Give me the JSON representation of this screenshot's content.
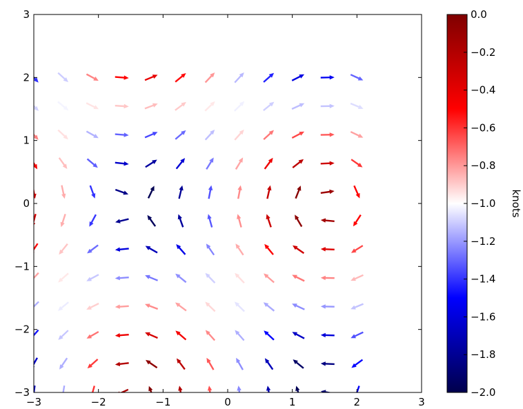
{
  "chart_data": {
    "type": "quiver",
    "title": "",
    "xlabel": "",
    "ylabel": "",
    "xlim": [
      -3,
      3
    ],
    "ylim": [
      -3,
      3
    ],
    "grid": false,
    "x_ticks": [
      -3,
      -2,
      -1,
      0,
      1,
      2,
      3
    ],
    "y_ticks": [
      -3,
      -2,
      -1,
      0,
      1,
      2,
      3
    ],
    "x_tick_labels": [
      "−3",
      "−2",
      "−1",
      "0",
      "1",
      "2",
      "3"
    ],
    "y_tick_labels": [
      "−3",
      "−2",
      "−1",
      "0",
      "1",
      "2",
      "3"
    ],
    "grid_x": [
      -3.0,
      -2.5455,
      -2.0909,
      -1.6364,
      -1.1818,
      -0.7273,
      -0.2727,
      0.1818,
      0.6364,
      1.0909,
      1.5455,
      2.0
    ],
    "grid_y": [
      -3.0,
      -2.5455,
      -2.0909,
      -1.6364,
      -1.1818,
      -0.7273,
      -0.2727,
      0.1818,
      0.6364,
      1.0909,
      1.5455,
      2.0
    ],
    "vector_field": {
      "u_expr": "sin(y)",
      "v_expr": "cos(x)",
      "note_values": "u, v and colour values are derived per grid point by the script from the colormap range below"
    },
    "colorbar": {
      "label": "knots",
      "colormap": "seismic",
      "vmin": -2.0,
      "vmax": 0.0,
      "ticks": [
        0.0,
        -0.2,
        -0.4,
        -0.6,
        -0.8,
        -1.0,
        -1.2,
        -1.4,
        -1.6,
        -1.8,
        -2.0
      ],
      "tick_labels": [
        "0.0",
        "−0.2",
        "−0.4",
        "−0.6",
        "−0.8",
        "−1.0",
        "−1.2",
        "−1.4",
        "−1.6",
        "−1.8",
        "−2.0"
      ],
      "colors": [
        "#00004c",
        "#0000ff",
        "#ffffff",
        "#ff0000",
        "#7f0000"
      ]
    }
  }
}
